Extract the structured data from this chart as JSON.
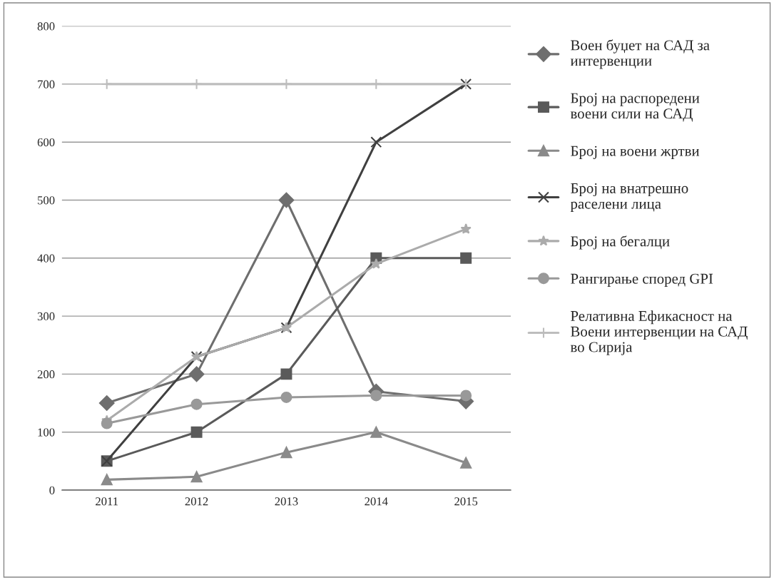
{
  "chart_data": {
    "type": "line",
    "categories": [
      "2011",
      "2012",
      "2013",
      "2014",
      "2015"
    ],
    "series": [
      {
        "name": "Воен буџет на САД за интервенции",
        "color": "#6e6e6e",
        "marker": "diamond",
        "values": [
          150,
          200,
          500,
          170,
          153
        ]
      },
      {
        "name": "Број на распоредени воени сили на САД",
        "color": "#5a5a5a",
        "marker": "square",
        "values": [
          50,
          100,
          200,
          400,
          400
        ]
      },
      {
        "name": "Број на воени жртви",
        "color": "#8a8a8a",
        "marker": "triangle",
        "values": [
          18,
          23,
          65,
          100,
          47
        ]
      },
      {
        "name": "Број на внатрешно раселени лица",
        "color": "#404040",
        "marker": "cross",
        "values": [
          50,
          230,
          280,
          600,
          700
        ]
      },
      {
        "name": "Број на бегалци",
        "color": "#ababab",
        "marker": "star",
        "values": [
          120,
          230,
          280,
          390,
          450
        ]
      },
      {
        "name": "Рангирање според GPI",
        "color": "#999999",
        "marker": "circle",
        "values": [
          115,
          148,
          160,
          163,
          163
        ]
      },
      {
        "name": "Релативна Ефикасност на Воени интервенции на САД во Сирија",
        "color": "#bdbdbd",
        "marker": "plus",
        "values": [
          700,
          700,
          700,
          700,
          700
        ]
      }
    ],
    "ylim": [
      0,
      800
    ],
    "yticks": [
      0,
      100,
      200,
      300,
      400,
      500,
      600,
      700,
      800
    ],
    "grid": "y",
    "legend": "right"
  }
}
